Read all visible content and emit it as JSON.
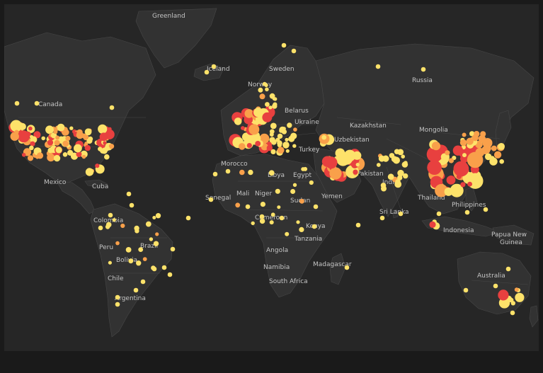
{
  "map": {
    "colors": {
      "background": "#262626",
      "land": "#323232",
      "border": "#474747",
      "label": "#c4c4c4",
      "level_low": "#fde26a",
      "level_mid": "#f9a04a",
      "level_high": "#e8403f"
    },
    "labels": [
      {
        "id": "greenland",
        "text": "Greenland"
      },
      {
        "id": "iceland",
        "text": "Iceland"
      },
      {
        "id": "canada",
        "text": "Canada"
      },
      {
        "id": "sweden",
        "text": "Sweden"
      },
      {
        "id": "norway",
        "text": "Norway"
      },
      {
        "id": "russia",
        "text": "Russia"
      },
      {
        "id": "belarus",
        "text": "Belarus"
      },
      {
        "id": "ukraine",
        "text": "Ukraine"
      },
      {
        "id": "kazakhstan",
        "text": "Kazakhstan"
      },
      {
        "id": "mongolia",
        "text": "Mongolia"
      },
      {
        "id": "uzbekistan",
        "text": "Uzbekistan"
      },
      {
        "id": "turkey",
        "text": "Turkey"
      },
      {
        "id": "morocco",
        "text": "Morocco"
      },
      {
        "id": "libya",
        "text": "Libya"
      },
      {
        "id": "egypt",
        "text": "Egypt"
      },
      {
        "id": "pakistan",
        "text": "Pakistan"
      },
      {
        "id": "india",
        "text": "India"
      },
      {
        "id": "mexico",
        "text": "Mexico"
      },
      {
        "id": "cuba",
        "text": "Cuba"
      },
      {
        "id": "yemen",
        "text": "Yemen"
      },
      {
        "id": "senegal",
        "text": "Senegal"
      },
      {
        "id": "mali",
        "text": "Mali"
      },
      {
        "id": "niger",
        "text": "Niger"
      },
      {
        "id": "sudan",
        "text": "Sudan"
      },
      {
        "id": "sri-lanka",
        "text": "Sri Lanka"
      },
      {
        "id": "thailand",
        "text": "Thailand"
      },
      {
        "id": "philippines",
        "text": "Philippines"
      },
      {
        "id": "colombia",
        "text": "Colombia"
      },
      {
        "id": "cameroon",
        "text": "Cameroon"
      },
      {
        "id": "kenya",
        "text": "Kenya"
      },
      {
        "id": "indonesia",
        "text": "Indonesia"
      },
      {
        "id": "papua-new-guinea-1",
        "text": "Papua New"
      },
      {
        "id": "papua-new-guinea-2",
        "text": "Guinea"
      },
      {
        "id": "peru",
        "text": "Peru"
      },
      {
        "id": "brazil",
        "text": "Brazil"
      },
      {
        "id": "tanzania",
        "text": "Tanzania"
      },
      {
        "id": "angola",
        "text": "Angola"
      },
      {
        "id": "bolivia",
        "text": "Bolivia"
      },
      {
        "id": "namibia",
        "text": "Namibia"
      },
      {
        "id": "madagascar",
        "text": "Madagascar"
      },
      {
        "id": "chile",
        "text": "Chile"
      },
      {
        "id": "south-africa",
        "text": "South Africa"
      },
      {
        "id": "australia",
        "text": "Australia"
      },
      {
        "id": "argentina",
        "text": "Argentina"
      }
    ]
  }
}
